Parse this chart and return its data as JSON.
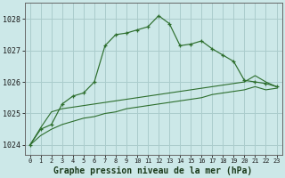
{
  "title": "Graphe pression niveau de la mer (hPa)",
  "bg_color": "#cce8e8",
  "grid_color": "#aacccc",
  "line_color": "#2d6e2d",
  "hours": [
    0,
    1,
    2,
    3,
    4,
    5,
    6,
    7,
    8,
    9,
    10,
    11,
    12,
    13,
    14,
    15,
    16,
    17,
    18,
    19,
    20,
    21,
    22,
    23
  ],
  "pressure_main": [
    1024.0,
    1024.5,
    1024.65,
    1025.3,
    1025.55,
    1025.65,
    1026.0,
    1027.15,
    1027.5,
    1027.55,
    1027.65,
    1027.75,
    1028.1,
    1027.85,
    1027.15,
    1027.2,
    1027.3,
    1027.05,
    1026.85,
    1026.65,
    1026.05,
    1026.0,
    1025.95,
    1025.85
  ],
  "pressure_line2": [
    1024.0,
    1024.55,
    1025.05,
    1025.15,
    1025.2,
    1025.25,
    1025.3,
    1025.35,
    1025.4,
    1025.45,
    1025.5,
    1025.55,
    1025.6,
    1025.65,
    1025.7,
    1025.75,
    1025.8,
    1025.85,
    1025.9,
    1025.95,
    1026.0,
    1026.2,
    1026.0,
    1025.85
  ],
  "pressure_line3": [
    1024.0,
    1024.3,
    1024.5,
    1024.65,
    1024.75,
    1024.85,
    1024.9,
    1025.0,
    1025.05,
    1025.15,
    1025.2,
    1025.25,
    1025.3,
    1025.35,
    1025.4,
    1025.45,
    1025.5,
    1025.6,
    1025.65,
    1025.7,
    1025.75,
    1025.85,
    1025.75,
    1025.8
  ],
  "ylim": [
    1023.7,
    1028.5
  ],
  "yticks": [
    1024,
    1025,
    1026,
    1027,
    1028
  ],
  "title_fontsize": 7.0
}
